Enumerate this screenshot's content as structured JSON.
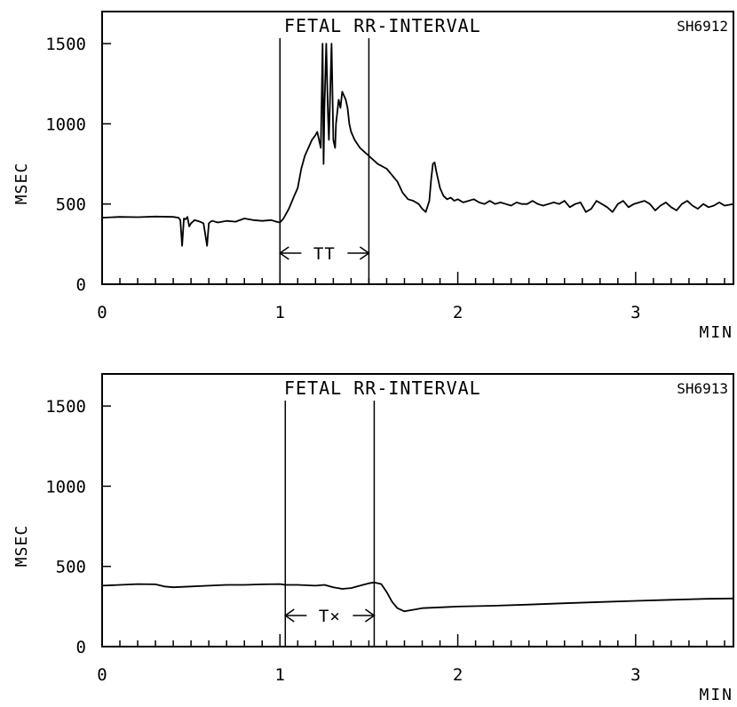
{
  "chart_data": [
    {
      "type": "line",
      "title": "FETAL RR-INTERVAL",
      "record_id": "SH6912",
      "xlabel": "MIN",
      "ylabel": "MSEC",
      "xlim": [
        0,
        3.55
      ],
      "ylim": [
        0,
        1700
      ],
      "xticks": [
        0,
        1,
        2,
        3
      ],
      "yticks": [
        0,
        500,
        1000,
        1500
      ],
      "grid": false,
      "markers": [
        1.0,
        1.5
      ],
      "interval_label": "TT",
      "series": [
        {
          "x": [
            0,
            0.1,
            0.2,
            0.3,
            0.4,
            0.43,
            0.44,
            0.45,
            0.46,
            0.47,
            0.48,
            0.49,
            0.5,
            0.52,
            0.55,
            0.57,
            0.59,
            0.6,
            0.61,
            0.62,
            0.65,
            0.7,
            0.75,
            0.8,
            0.85,
            0.9,
            0.95,
            0.98,
            1.0,
            1.02,
            1.05,
            1.08,
            1.1,
            1.12,
            1.14,
            1.16,
            1.18,
            1.2,
            1.21,
            1.23,
            1.24,
            1.245,
            1.25,
            1.26,
            1.27,
            1.275,
            1.28,
            1.29,
            1.3,
            1.31,
            1.315,
            1.32,
            1.33,
            1.34,
            1.35,
            1.37,
            1.38,
            1.39,
            1.4,
            1.42,
            1.45,
            1.48,
            1.5,
            1.55,
            1.6,
            1.63,
            1.66,
            1.69,
            1.72,
            1.75,
            1.78,
            1.8,
            1.82,
            1.84,
            1.85,
            1.86,
            1.87,
            1.88,
            1.9,
            1.92,
            1.94,
            1.96,
            1.98,
            2.0,
            2.03,
            2.06,
            2.09,
            2.12,
            2.15,
            2.18,
            2.21,
            2.24,
            2.27,
            2.3,
            2.33,
            2.36,
            2.39,
            2.42,
            2.45,
            2.48,
            2.51,
            2.54,
            2.57,
            2.6,
            2.63,
            2.66,
            2.69,
            2.72,
            2.75,
            2.78,
            2.81,
            2.84,
            2.87,
            2.9,
            2.93,
            2.96,
            2.99,
            3.02,
            3.05,
            3.08,
            3.11,
            3.14,
            3.17,
            3.2,
            3.23,
            3.26,
            3.29,
            3.32,
            3.35,
            3.38,
            3.41,
            3.44,
            3.47,
            3.5,
            3.55
          ],
          "y": [
            415,
            420,
            418,
            422,
            420,
            415,
            400,
            240,
            410,
            405,
            420,
            360,
            380,
            400,
            390,
            380,
            240,
            380,
            390,
            395,
            385,
            395,
            390,
            410,
            400,
            395,
            400,
            390,
            385,
            410,
            470,
            550,
            600,
            720,
            800,
            850,
            900,
            930,
            950,
            850,
            1500,
            750,
            1100,
            1500,
            1050,
            900,
            1100,
            1500,
            900,
            850,
            1000,
            1050,
            1150,
            1100,
            1200,
            1150,
            1100,
            1000,
            950,
            900,
            850,
            820,
            800,
            750,
            720,
            680,
            640,
            570,
            530,
            520,
            500,
            470,
            450,
            520,
            650,
            750,
            760,
            700,
            600,
            550,
            530,
            540,
            520,
            530,
            510,
            520,
            530,
            510,
            500,
            520,
            500,
            510,
            500,
            490,
            510,
            500,
            500,
            520,
            500,
            490,
            500,
            510,
            500,
            520,
            480,
            500,
            510,
            450,
            470,
            520,
            500,
            480,
            450,
            500,
            520,
            480,
            500,
            510,
            520,
            500,
            460,
            490,
            510,
            480,
            460,
            500,
            520,
            490,
            470,
            500,
            480,
            490,
            510,
            490,
            500
          ]
        }
      ]
    },
    {
      "type": "line",
      "title": "FETAL RR-INTERVAL",
      "record_id": "SH6913",
      "xlabel": "MIN",
      "ylabel": "MSEC",
      "xlim": [
        0,
        3.55
      ],
      "ylim": [
        0,
        1700
      ],
      "xticks": [
        0,
        1,
        2,
        3
      ],
      "yticks": [
        0,
        500,
        1000,
        1500
      ],
      "grid": false,
      "markers": [
        1.03,
        1.53
      ],
      "interval_label": "T×",
      "series": [
        {
          "x": [
            0,
            0.1,
            0.2,
            0.3,
            0.35,
            0.4,
            0.5,
            0.6,
            0.7,
            0.8,
            0.9,
            1.0,
            1.03,
            1.1,
            1.2,
            1.25,
            1.3,
            1.35,
            1.4,
            1.45,
            1.5,
            1.53,
            1.57,
            1.6,
            1.63,
            1.66,
            1.7,
            1.75,
            1.8,
            1.9,
            2.0,
            2.2,
            2.4,
            2.6,
            2.8,
            3.0,
            3.2,
            3.4,
            3.55
          ],
          "y": [
            380,
            385,
            390,
            388,
            375,
            370,
            375,
            380,
            385,
            385,
            388,
            390,
            385,
            385,
            380,
            385,
            370,
            360,
            365,
            380,
            395,
            400,
            390,
            340,
            280,
            240,
            220,
            230,
            240,
            245,
            250,
            255,
            262,
            270,
            278,
            285,
            292,
            298,
            300
          ]
        }
      ]
    }
  ]
}
